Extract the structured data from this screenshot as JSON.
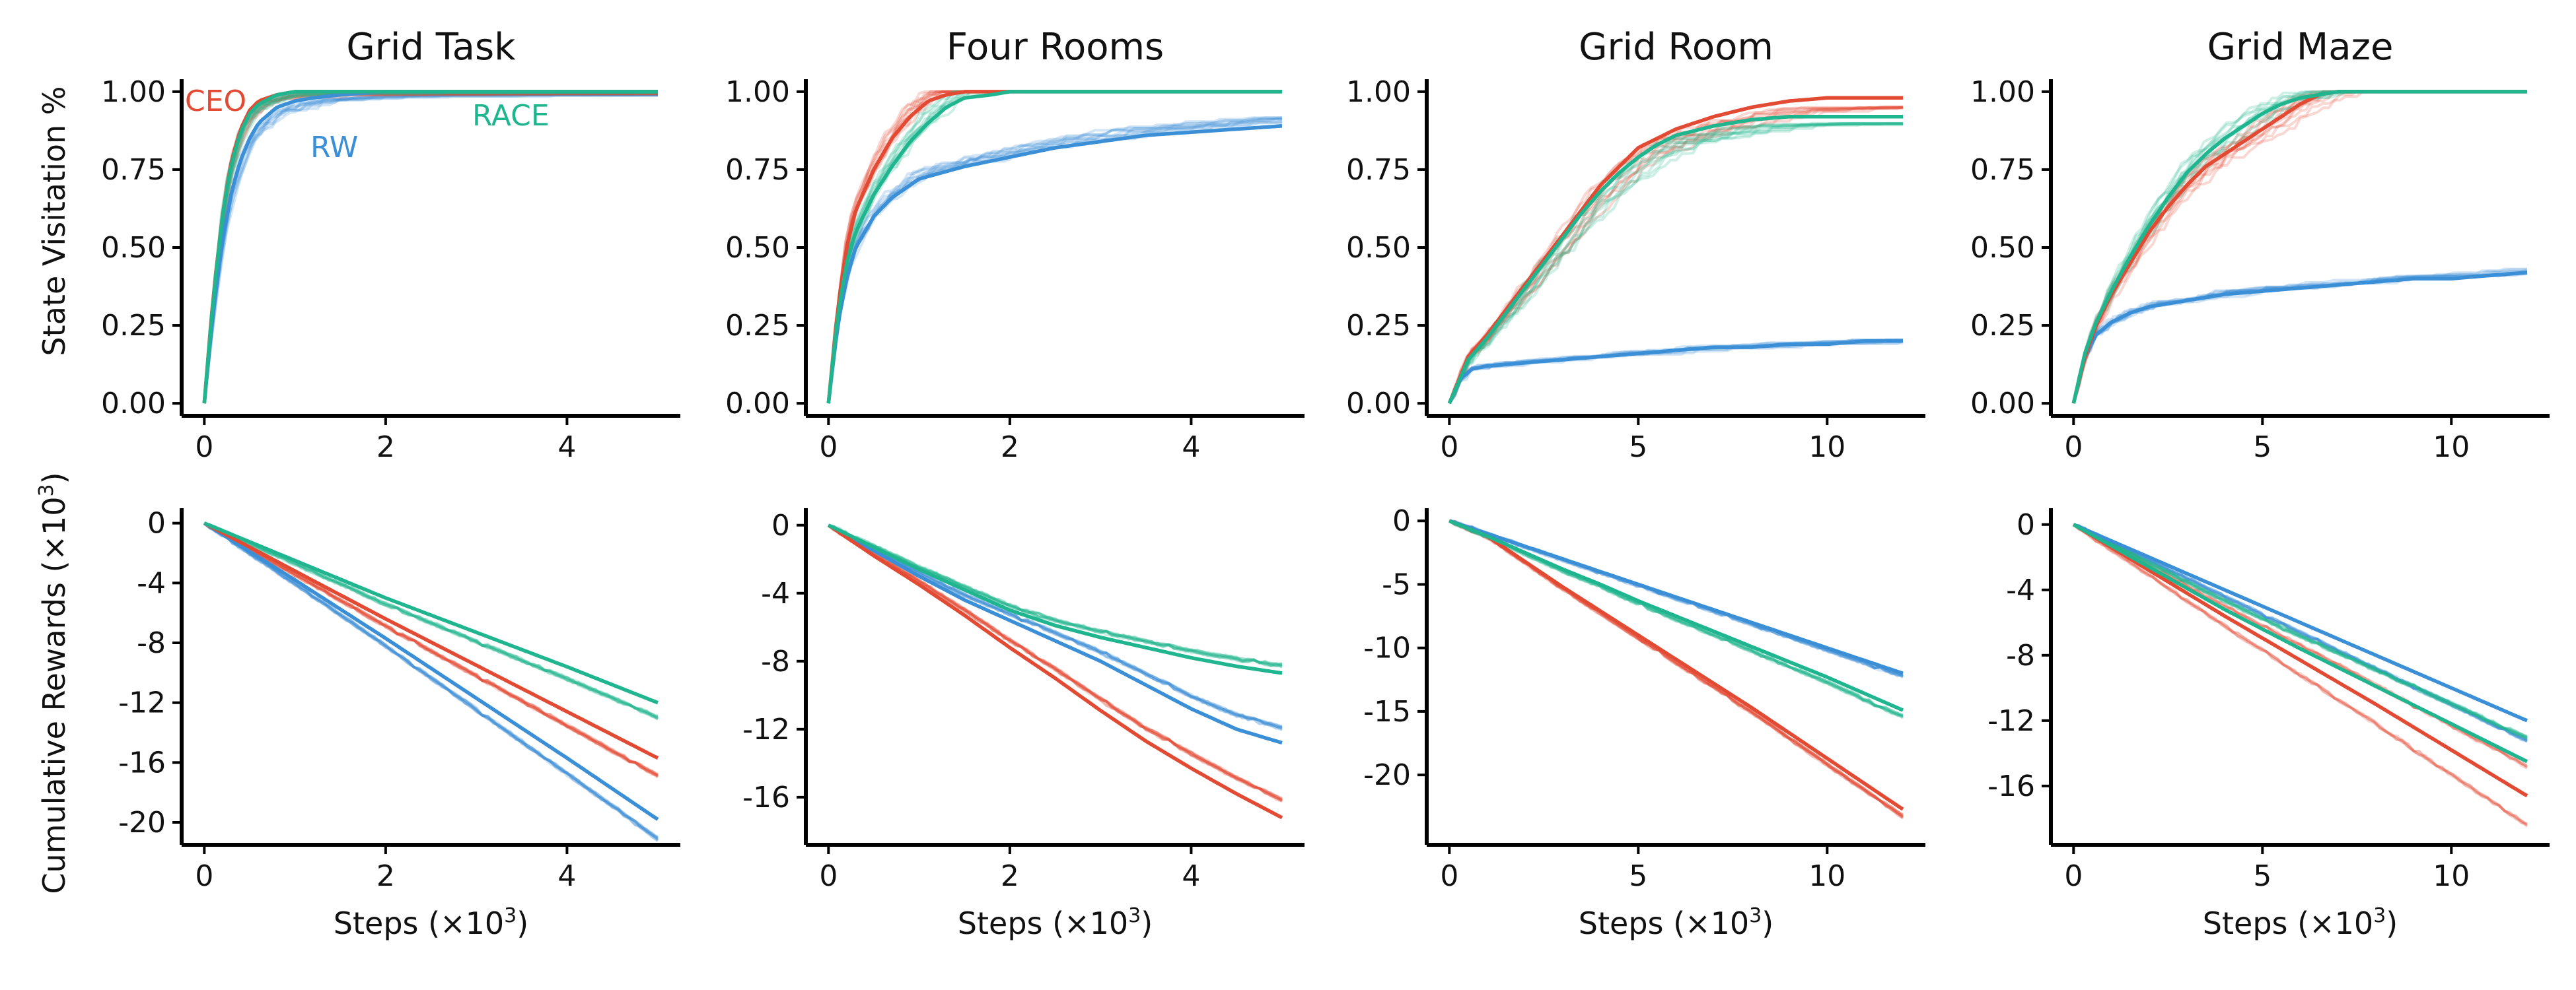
{
  "figure": {
    "row_ylabels": [
      "State Visitation %",
      "Cumulative Rewards (×10³)"
    ],
    "steps_label": "Steps (×10",
    "steps_label_exp": "3",
    "steps_label_end": ")",
    "cumrew_label": "Cumulative Rewards (×10",
    "cumrew_label_exp": "3",
    "cumrew_label_end": ")"
  },
  "colors": {
    "CEO": "#e24a33",
    "RW": "#3a8fd6",
    "RACE": "#1fb58f"
  },
  "legend": [
    {
      "name": "CEO",
      "color": "#e24a33"
    },
    {
      "name": "RW",
      "color": "#3a8fd6"
    },
    {
      "name": "RACE",
      "color": "#1fb58f"
    }
  ],
  "chart_data": [
    {
      "type": "line",
      "title": "Grid Task",
      "metric": "State Visitation %",
      "xlabel": "",
      "ylabel": "State Visitation %",
      "xlim": [
        -0.25,
        5.25
      ],
      "ylim": [
        -0.04,
        1.04
      ],
      "xticks": [
        0,
        2,
        4
      ],
      "yticks": [
        0.0,
        0.25,
        0.5,
        0.75,
        1.0
      ],
      "ytick_labels": [
        "0.00",
        "0.25",
        "0.50",
        "0.75",
        "1.00"
      ],
      "series": [
        {
          "name": "CEO",
          "x": [
            0,
            0.1,
            0.2,
            0.3,
            0.4,
            0.5,
            0.6,
            0.8,
            1.0,
            1.5,
            2.0,
            3.0,
            4.0,
            5.0
          ],
          "y": [
            0,
            0.35,
            0.6,
            0.78,
            0.88,
            0.94,
            0.97,
            0.99,
            1.0,
            1.0,
            1.0,
            1.0,
            1.0,
            1.0
          ]
        },
        {
          "name": "RW",
          "x": [
            0,
            0.1,
            0.2,
            0.3,
            0.4,
            0.5,
            0.6,
            0.8,
            1.0,
            1.2,
            1.5,
            2.0,
            3.0,
            4.0,
            5.0
          ],
          "y": [
            0,
            0.3,
            0.52,
            0.68,
            0.78,
            0.85,
            0.9,
            0.95,
            0.97,
            0.98,
            0.99,
            1.0,
            1.0,
            1.0,
            1.0
          ]
        },
        {
          "name": "RACE",
          "x": [
            0,
            0.1,
            0.2,
            0.3,
            0.4,
            0.5,
            0.6,
            0.8,
            1.0,
            1.5,
            2.0,
            3.0,
            4.0,
            5.0
          ],
          "y": [
            0,
            0.34,
            0.6,
            0.77,
            0.87,
            0.93,
            0.96,
            0.99,
            1.0,
            1.0,
            1.0,
            1.0,
            1.0,
            1.0
          ]
        }
      ]
    },
    {
      "type": "line",
      "title": "Four Rooms",
      "metric": "State Visitation %",
      "xlabel": "",
      "ylabel": "",
      "xlim": [
        -0.25,
        5.25
      ],
      "ylim": [
        -0.04,
        1.04
      ],
      "xticks": [
        0,
        2,
        4
      ],
      "yticks": [
        0.0,
        0.25,
        0.5,
        0.75,
        1.0
      ],
      "ytick_labels": [
        "0.00",
        "0.25",
        "0.50",
        "0.75",
        "1.00"
      ],
      "series": [
        {
          "name": "CEO",
          "x": [
            0,
            0.1,
            0.2,
            0.3,
            0.5,
            0.7,
            0.9,
            1.1,
            1.3,
            1.5,
            2.0,
            3.0,
            4.0,
            5.0
          ],
          "y": [
            0,
            0.3,
            0.5,
            0.62,
            0.75,
            0.85,
            0.92,
            0.97,
            0.99,
            1.0,
            1.0,
            1.0,
            1.0,
            1.0
          ]
        },
        {
          "name": "RW",
          "x": [
            0,
            0.1,
            0.2,
            0.3,
            0.5,
            0.7,
            1.0,
            1.5,
            2.0,
            2.5,
            3.0,
            3.5,
            4.0,
            4.5,
            5.0
          ],
          "y": [
            0,
            0.25,
            0.4,
            0.5,
            0.6,
            0.66,
            0.72,
            0.76,
            0.79,
            0.82,
            0.84,
            0.86,
            0.87,
            0.88,
            0.89
          ]
        },
        {
          "name": "RACE",
          "x": [
            0,
            0.1,
            0.2,
            0.3,
            0.5,
            0.7,
            0.9,
            1.1,
            1.3,
            1.5,
            1.8,
            2.0,
            3.0,
            4.0,
            5.0
          ],
          "y": [
            0,
            0.28,
            0.45,
            0.55,
            0.67,
            0.76,
            0.84,
            0.9,
            0.95,
            0.98,
            0.99,
            1.0,
            1.0,
            1.0,
            1.0
          ]
        }
      ]
    },
    {
      "type": "line",
      "title": "Grid Room",
      "metric": "State Visitation %",
      "xlabel": "",
      "ylabel": "",
      "xlim": [
        -0.6,
        12.6
      ],
      "ylim": [
        -0.04,
        1.04
      ],
      "xticks": [
        0,
        5,
        10
      ],
      "yticks": [
        0.0,
        0.25,
        0.5,
        0.75,
        1.0
      ],
      "ytick_labels": [
        "0.00",
        "0.25",
        "0.50",
        "0.75",
        "1.00"
      ],
      "series": [
        {
          "name": "CEO",
          "x": [
            0,
            0.5,
            1,
            1.5,
            2,
            2.5,
            3,
            3.5,
            4,
            4.5,
            5,
            6,
            7,
            8,
            9,
            10,
            11,
            12
          ],
          "y": [
            0,
            0.15,
            0.22,
            0.3,
            0.38,
            0.46,
            0.54,
            0.62,
            0.7,
            0.76,
            0.82,
            0.88,
            0.92,
            0.95,
            0.97,
            0.98,
            0.98,
            0.98
          ]
        },
        {
          "name": "RW",
          "x": [
            0,
            0.3,
            0.6,
            1,
            2,
            3,
            4,
            5,
            6,
            7,
            8,
            9,
            10,
            11,
            12
          ],
          "y": [
            0,
            0.08,
            0.11,
            0.12,
            0.13,
            0.14,
            0.15,
            0.16,
            0.17,
            0.18,
            0.18,
            0.19,
            0.19,
            0.2,
            0.2
          ]
        },
        {
          "name": "RACE",
          "x": [
            0,
            0.5,
            1,
            1.5,
            2,
            2.5,
            3,
            3.5,
            4,
            4.5,
            5,
            5.5,
            6,
            7,
            8,
            9,
            10,
            11,
            12
          ],
          "y": [
            0,
            0.14,
            0.21,
            0.29,
            0.37,
            0.45,
            0.53,
            0.61,
            0.68,
            0.74,
            0.79,
            0.83,
            0.86,
            0.89,
            0.91,
            0.92,
            0.92,
            0.92,
            0.92
          ]
        }
      ]
    },
    {
      "type": "line",
      "title": "Grid Maze",
      "metric": "State Visitation %",
      "xlabel": "",
      "ylabel": "",
      "xlim": [
        -0.6,
        12.6
      ],
      "ylim": [
        -0.04,
        1.04
      ],
      "xticks": [
        0,
        5,
        10
      ],
      "yticks": [
        0.0,
        0.25,
        0.5,
        0.75,
        1.0
      ],
      "ytick_labels": [
        "0.00",
        "0.25",
        "0.50",
        "0.75",
        "1.00"
      ],
      "series": [
        {
          "name": "CEO",
          "x": [
            0,
            0.3,
            0.6,
            1,
            1.5,
            2,
            2.5,
            3,
            3.5,
            4,
            4.5,
            5,
            5.5,
            6,
            6.5,
            7,
            8,
            9,
            10,
            11,
            12
          ],
          "y": [
            0,
            0.15,
            0.25,
            0.35,
            0.45,
            0.55,
            0.63,
            0.7,
            0.76,
            0.8,
            0.84,
            0.88,
            0.92,
            0.96,
            0.99,
            1.0,
            1.0,
            1.0,
            1.0,
            1.0,
            1.0
          ]
        },
        {
          "name": "RW",
          "x": [
            0,
            0.3,
            0.6,
            1,
            1.5,
            2,
            3,
            4,
            5,
            6,
            7,
            8,
            9,
            10,
            11,
            12
          ],
          "y": [
            0,
            0.15,
            0.22,
            0.26,
            0.29,
            0.31,
            0.33,
            0.35,
            0.36,
            0.37,
            0.38,
            0.39,
            0.4,
            0.4,
            0.41,
            0.42
          ]
        },
        {
          "name": "RACE",
          "x": [
            0,
            0.3,
            0.6,
            1,
            1.5,
            2,
            2.5,
            3,
            3.5,
            4,
            4.5,
            5,
            5.5,
            6,
            7,
            8,
            9,
            10,
            11,
            12
          ],
          "y": [
            0,
            0.16,
            0.26,
            0.36,
            0.47,
            0.57,
            0.66,
            0.74,
            0.8,
            0.85,
            0.89,
            0.93,
            0.96,
            0.98,
            1.0,
            1.0,
            1.0,
            1.0,
            1.0,
            1.0
          ]
        }
      ]
    },
    {
      "type": "line",
      "title": "",
      "metric": "Cumulative Rewards",
      "xlabel": "Steps (×10³)",
      "ylabel": "Cumulative Rewards (×10³)",
      "xlim": [
        -0.25,
        5.25
      ],
      "ylim": [
        -21.5,
        1.0
      ],
      "xticks": [
        0,
        2,
        4
      ],
      "yticks": [
        0,
        -4,
        -8,
        -12,
        -16,
        -20
      ],
      "ytick_labels": [
        "0",
        "-4",
        "-8",
        "-12",
        "-16",
        "-20"
      ],
      "series": [
        {
          "name": "CEO",
          "x": [
            0,
            1,
            2,
            3,
            4,
            5
          ],
          "y": [
            0,
            -3.2,
            -6.4,
            -9.5,
            -12.6,
            -15.7
          ]
        },
        {
          "name": "RW",
          "x": [
            0,
            1,
            2,
            3,
            4,
            5
          ],
          "y": [
            0,
            -3.8,
            -7.7,
            -11.7,
            -15.7,
            -19.8
          ]
        },
        {
          "name": "RACE",
          "x": [
            0,
            1,
            2,
            3,
            4,
            5
          ],
          "y": [
            0,
            -2.5,
            -5.0,
            -7.3,
            -9.6,
            -12.0
          ]
        }
      ]
    },
    {
      "type": "line",
      "title": "",
      "metric": "Cumulative Rewards",
      "xlabel": "Steps (×10³)",
      "ylabel": "",
      "xlim": [
        -0.25,
        5.25
      ],
      "ylim": [
        -18.8,
        1.0
      ],
      "xticks": [
        0,
        2,
        4
      ],
      "yticks": [
        0,
        -4,
        -8,
        -12,
        -16
      ],
      "ytick_labels": [
        "0",
        "-4",
        "-8",
        "-12",
        "-16"
      ],
      "series": [
        {
          "name": "CEO",
          "x": [
            0,
            0.5,
            1,
            1.5,
            2,
            2.5,
            3,
            3.5,
            4,
            4.5,
            5
          ],
          "y": [
            0,
            -1.8,
            -3.5,
            -5.3,
            -7.2,
            -9.0,
            -10.9,
            -12.7,
            -14.3,
            -15.8,
            -17.2
          ]
        },
        {
          "name": "RW",
          "x": [
            0,
            0.5,
            1,
            1.5,
            2,
            2.5,
            3,
            3.5,
            4,
            4.5,
            5
          ],
          "y": [
            0,
            -1.5,
            -3.0,
            -4.4,
            -5.6,
            -6.8,
            -8.0,
            -9.4,
            -10.8,
            -12.0,
            -12.8
          ]
        },
        {
          "name": "RACE",
          "x": [
            0,
            0.5,
            1,
            1.5,
            2,
            2.5,
            3,
            3.5,
            4,
            4.5,
            5
          ],
          "y": [
            0,
            -1.3,
            -2.6,
            -3.8,
            -5.0,
            -5.9,
            -6.6,
            -7.2,
            -7.8,
            -8.3,
            -8.7
          ]
        }
      ]
    },
    {
      "type": "line",
      "title": "",
      "metric": "Cumulative Rewards",
      "xlabel": "Steps (×10³)",
      "ylabel": "",
      "xlim": [
        -0.6,
        12.6
      ],
      "ylim": [
        -25.5,
        1.0
      ],
      "xticks": [
        0,
        5,
        10
      ],
      "yticks": [
        0,
        -5,
        -10,
        -15,
        -20
      ],
      "ytick_labels": [
        "0",
        "-5",
        "-10",
        "-15",
        "-20"
      ],
      "series": [
        {
          "name": "CEO",
          "x": [
            0,
            1,
            2,
            3,
            4,
            5,
            6,
            7,
            8,
            9,
            10,
            11,
            12
          ],
          "y": [
            0,
            -1.2,
            -3.2,
            -5.2,
            -7.1,
            -9.0,
            -10.9,
            -12.8,
            -14.7,
            -16.7,
            -18.7,
            -20.7,
            -22.7
          ]
        },
        {
          "name": "RW",
          "x": [
            0,
            12
          ],
          "y": [
            0,
            -12.0
          ]
        },
        {
          "name": "RACE",
          "x": [
            0,
            1,
            2,
            3,
            4,
            5,
            6,
            7,
            8,
            9,
            10,
            11,
            12
          ],
          "y": [
            0,
            -1.2,
            -2.5,
            -3.8,
            -5.0,
            -6.3,
            -7.5,
            -8.7,
            -9.9,
            -11.1,
            -12.3,
            -13.6,
            -14.9
          ]
        }
      ]
    },
    {
      "type": "line",
      "title": "",
      "metric": "Cumulative Rewards",
      "xlabel": "Steps (×10³)",
      "ylabel": "",
      "xlim": [
        -0.6,
        12.6
      ],
      "ylim": [
        -19.6,
        1.0
      ],
      "xticks": [
        0,
        5,
        10
      ],
      "yticks": [
        0,
        -4,
        -8,
        -12,
        -16
      ],
      "ytick_labels": [
        "0",
        "-4",
        "-8",
        "-12",
        "-16"
      ],
      "series": [
        {
          "name": "CEO",
          "x": [
            0,
            2,
            4,
            6,
            8,
            10,
            12
          ],
          "y": [
            0,
            -2.8,
            -5.6,
            -8.3,
            -11.0,
            -13.8,
            -16.6
          ]
        },
        {
          "name": "RW",
          "x": [
            0,
            12
          ],
          "y": [
            0,
            -12.0
          ]
        },
        {
          "name": "RACE",
          "x": [
            0,
            2,
            4,
            6,
            8,
            10,
            12
          ],
          "y": [
            0,
            -2.6,
            -5.2,
            -7.6,
            -9.9,
            -12.2,
            -14.5
          ]
        }
      ]
    }
  ]
}
